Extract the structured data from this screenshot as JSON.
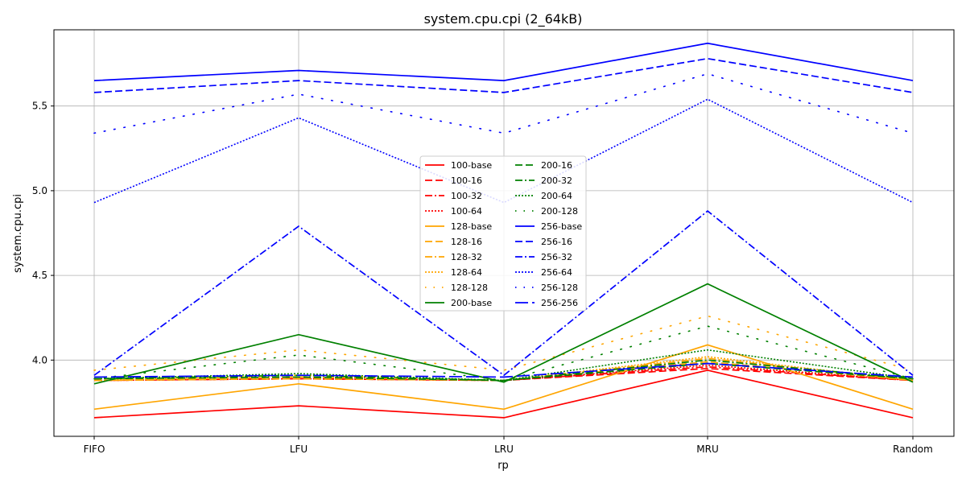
{
  "chart_data": {
    "type": "line",
    "title": "system.cpu.cpi (2_64kB)",
    "xlabel": "rp",
    "ylabel": "system.cpu.cpi",
    "categories": [
      "FIFO",
      "LFU",
      "LRU",
      "MRU",
      "Random"
    ],
    "ylim": [
      3.55,
      5.95
    ],
    "yticks": [
      4.0,
      4.5,
      5.0,
      5.5
    ],
    "ytick_labels": [
      "4.0",
      "4.5",
      "5.0",
      "5.5"
    ],
    "grid": true,
    "legend_position": "center",
    "series": [
      {
        "name": "100-base",
        "color": "#ff0000",
        "style": "solid",
        "values": [
          3.66,
          3.73,
          3.66,
          3.94,
          3.66
        ]
      },
      {
        "name": "100-16",
        "color": "#ff0000",
        "style": "dashed",
        "values": [
          3.88,
          3.89,
          3.88,
          3.95,
          3.88
        ]
      },
      {
        "name": "100-32",
        "color": "#ff0000",
        "style": "dashdot",
        "values": [
          3.88,
          3.89,
          3.88,
          3.96,
          3.88
        ]
      },
      {
        "name": "100-64",
        "color": "#ff0000",
        "style": "dotted",
        "values": [
          3.88,
          3.89,
          3.88,
          3.97,
          3.88
        ]
      },
      {
        "name": "128-base",
        "color": "#ffa500",
        "style": "solid",
        "values": [
          3.71,
          3.86,
          3.71,
          4.09,
          3.71
        ]
      },
      {
        "name": "128-16",
        "color": "#ffa500",
        "style": "dashed",
        "values": [
          3.88,
          3.89,
          3.88,
          3.99,
          3.88
        ]
      },
      {
        "name": "128-32",
        "color": "#ffa500",
        "style": "dashdot",
        "values": [
          3.88,
          3.9,
          3.88,
          4.01,
          3.88
        ]
      },
      {
        "name": "128-64",
        "color": "#ffa500",
        "style": "dotted",
        "values": [
          3.88,
          3.91,
          3.88,
          4.02,
          3.88
        ]
      },
      {
        "name": "128-128",
        "color": "#ffa500",
        "style": "sparse",
        "values": [
          3.94,
          4.06,
          3.94,
          4.26,
          3.94
        ]
      },
      {
        "name": "200-base",
        "color": "#008000",
        "style": "solid",
        "values": [
          3.86,
          4.15,
          3.87,
          4.45,
          3.87
        ]
      },
      {
        "name": "200-16",
        "color": "#008000",
        "style": "dashed",
        "values": [
          3.89,
          3.9,
          3.88,
          3.98,
          3.89
        ]
      },
      {
        "name": "200-32",
        "color": "#008000",
        "style": "dashdot",
        "values": [
          3.89,
          3.91,
          3.88,
          4.0,
          3.89
        ]
      },
      {
        "name": "200-64",
        "color": "#008000",
        "style": "dotted",
        "values": [
          3.89,
          3.92,
          3.88,
          4.06,
          3.89
        ]
      },
      {
        "name": "200-128",
        "color": "#008000",
        "style": "sparse",
        "values": [
          3.89,
          4.03,
          3.88,
          4.2,
          3.89
        ]
      },
      {
        "name": "256-base",
        "color": "#0000ff",
        "style": "solid",
        "values": [
          5.65,
          5.71,
          5.65,
          5.87,
          5.65
        ]
      },
      {
        "name": "256-16",
        "color": "#0000ff",
        "style": "dashed",
        "values": [
          5.58,
          5.65,
          5.58,
          5.78,
          5.58
        ]
      },
      {
        "name": "256-32",
        "color": "#0000ff",
        "style": "dashdot",
        "values": [
          3.91,
          4.79,
          3.91,
          4.88,
          3.91
        ]
      },
      {
        "name": "256-64",
        "color": "#0000ff",
        "style": "dotted",
        "values": [
          4.93,
          5.43,
          4.93,
          5.54,
          4.93
        ]
      },
      {
        "name": "256-128",
        "color": "#0000ff",
        "style": "sparse",
        "values": [
          5.34,
          5.57,
          5.34,
          5.69,
          5.34
        ]
      },
      {
        "name": "256-256",
        "color": "#0000ff",
        "style": "longdash",
        "values": [
          3.9,
          3.91,
          3.9,
          3.98,
          3.9
        ]
      }
    ]
  }
}
